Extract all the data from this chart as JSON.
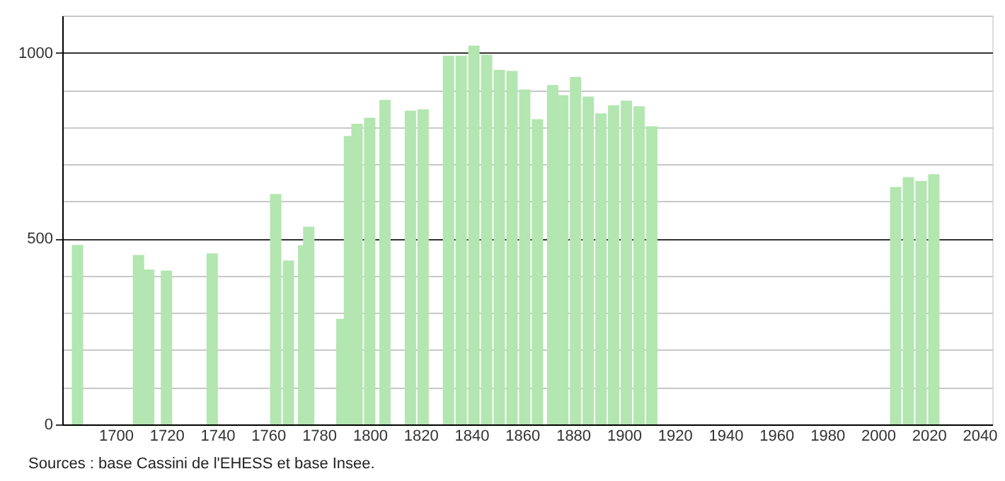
{
  "chart_data": {
    "type": "bar",
    "color": "#b3e6b0",
    "x": [
      1685,
      1709,
      1713,
      1720,
      1738,
      1763,
      1768,
      1774,
      1776,
      1789,
      1792,
      1795,
      1800,
      1806,
      1816,
      1821,
      1831,
      1836,
      1841,
      1846,
      1851,
      1856,
      1861,
      1866,
      1872,
      1876,
      1881,
      1886,
      1891,
      1896,
      1901,
      1906,
      1911,
      2007,
      2012,
      2017,
      2022
    ],
    "values": [
      483,
      456,
      417,
      414,
      460,
      620,
      441,
      482,
      532,
      284,
      776,
      809,
      825,
      873,
      844,
      848,
      992,
      992,
      1019,
      995,
      954,
      951,
      901,
      821,
      913,
      886,
      935,
      882,
      837,
      859,
      871,
      856,
      802,
      639,
      665,
      655,
      673
    ],
    "xlim": [
      1679,
      2045
    ],
    "xticks": [
      1700,
      1720,
      1740,
      1760,
      1780,
      1800,
      1820,
      1840,
      1860,
      1880,
      1900,
      1920,
      1940,
      1960,
      1980,
      2000,
      2020,
      2040
    ],
    "ylim": [
      0,
      1100
    ],
    "yticks": [
      0,
      {
        "value": 100,
        "label": null
      },
      {
        "value": 200,
        "label": null
      },
      {
        "value": 300,
        "label": null
      },
      {
        "value": 400,
        "label": null
      },
      500,
      {
        "value": 600,
        "label": null
      },
      {
        "value": 700,
        "label": null
      },
      {
        "value": 800,
        "label": null
      },
      {
        "value": 900,
        "label": null
      },
      1000,
      {
        "value": 1100,
        "label": null
      }
    ],
    "grid": "y",
    "annotations": [
      "Sources : base Cassini de l'EHESS et base Insee."
    ]
  }
}
